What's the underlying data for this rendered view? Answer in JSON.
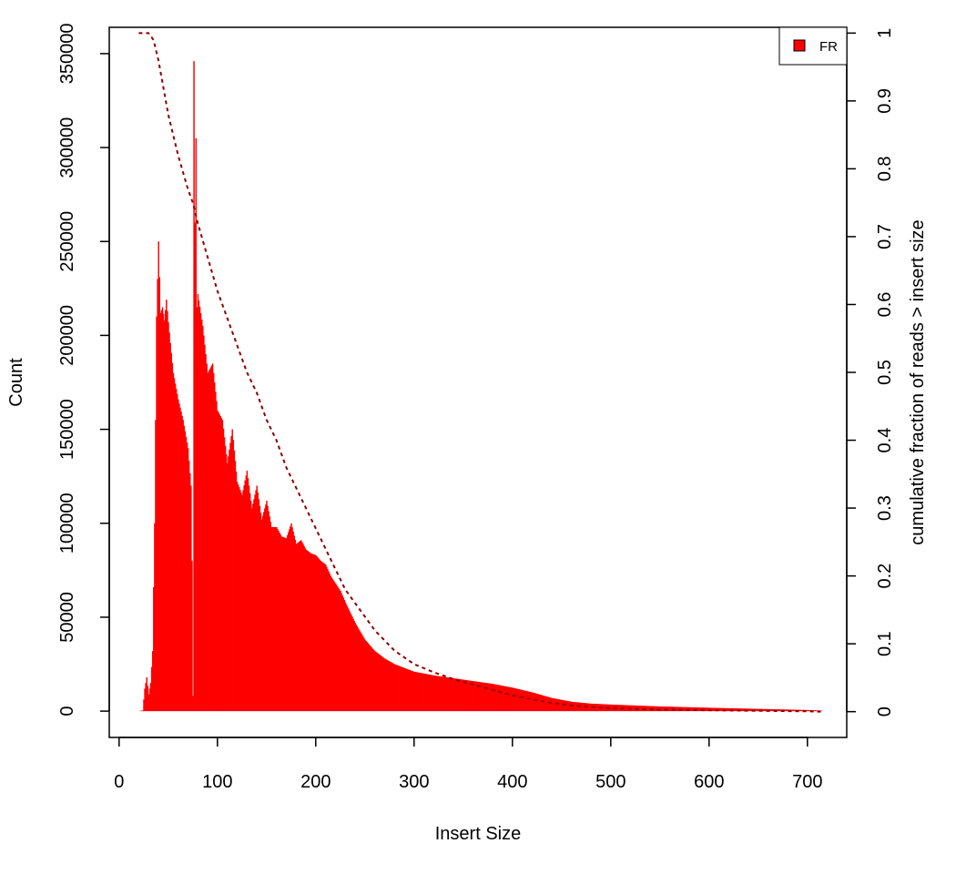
{
  "chart_data": {
    "type": "bar",
    "xlabel": "Insert Size",
    "ylabel": "Count",
    "y2label": "cumulative fraction of reads > insert size",
    "xlim": [
      -10,
      740
    ],
    "ylim": [
      -14000,
      364000
    ],
    "y2lim": [
      -0.038,
      1.0085
    ],
    "x_ticks": [
      "0",
      "100",
      "200",
      "300",
      "400",
      "500",
      "600",
      "700"
    ],
    "y_ticks": [
      "0",
      "50000",
      "100000",
      "150000",
      "200000",
      "250000",
      "300000",
      "350000"
    ],
    "y2_ticks": [
      "0",
      "0.1",
      "0.2",
      "0.3",
      "0.4",
      "0.5",
      "0.6",
      "0.7",
      "0.8",
      "0.9",
      "1"
    ],
    "legend": {
      "position": "top-right",
      "entries": [
        {
          "label": "FR",
          "color": "#ff0000"
        }
      ]
    },
    "bar_color": "#ff0000",
    "curve_color": "#8b0000",
    "histogram_knots": [
      [
        20,
        0
      ],
      [
        24,
        400
      ],
      [
        26,
        12000
      ],
      [
        28,
        18000
      ],
      [
        30,
        9000
      ],
      [
        32,
        15000
      ],
      [
        34,
        32000
      ],
      [
        36,
        100000
      ],
      [
        38,
        210000
      ],
      [
        40,
        250000
      ],
      [
        42,
        212000
      ],
      [
        44,
        215000
      ],
      [
        46,
        208000
      ],
      [
        48,
        219000
      ],
      [
        50,
        207000
      ],
      [
        52,
        196000
      ],
      [
        55,
        180000
      ],
      [
        60,
        166000
      ],
      [
        65,
        155000
      ],
      [
        70,
        140000
      ],
      [
        73,
        120000
      ],
      [
        74,
        80000
      ],
      [
        75,
        8000
      ],
      [
        76,
        346000
      ],
      [
        77,
        260000
      ],
      [
        78,
        305000
      ],
      [
        79,
        215000
      ],
      [
        80,
        222000
      ],
      [
        85,
        205000
      ],
      [
        90,
        180000
      ],
      [
        95,
        185000
      ],
      [
        100,
        160000
      ],
      [
        105,
        155000
      ],
      [
        110,
        132000
      ],
      [
        115,
        150000
      ],
      [
        120,
        122000
      ],
      [
        125,
        115000
      ],
      [
        130,
        128000
      ],
      [
        135,
        108000
      ],
      [
        140,
        120000
      ],
      [
        145,
        102000
      ],
      [
        150,
        112000
      ],
      [
        155,
        98000
      ],
      [
        160,
        98000
      ],
      [
        165,
        93000
      ],
      [
        170,
        92000
      ],
      [
        175,
        100000
      ],
      [
        180,
        89000
      ],
      [
        185,
        91000
      ],
      [
        190,
        86000
      ],
      [
        195,
        84000
      ],
      [
        200,
        83000
      ],
      [
        205,
        80000
      ],
      [
        210,
        78000
      ],
      [
        215,
        72000
      ],
      [
        220,
        68000
      ],
      [
        225,
        64000
      ],
      [
        230,
        58000
      ],
      [
        240,
        47000
      ],
      [
        250,
        38000
      ],
      [
        260,
        32000
      ],
      [
        270,
        28000
      ],
      [
        280,
        25000
      ],
      [
        290,
        23000
      ],
      [
        300,
        21000
      ],
      [
        320,
        19000
      ],
      [
        340,
        17500
      ],
      [
        360,
        16000
      ],
      [
        380,
        14500
      ],
      [
        400,
        12500
      ],
      [
        420,
        10000
      ],
      [
        440,
        7000
      ],
      [
        460,
        5000
      ],
      [
        480,
        4000
      ],
      [
        500,
        3500
      ],
      [
        550,
        2500
      ],
      [
        600,
        1800
      ],
      [
        650,
        1200
      ],
      [
        700,
        600
      ],
      [
        714,
        300
      ]
    ],
    "cumulative_curve": [
      [
        20,
        1.0
      ],
      [
        30,
        1.0
      ],
      [
        35,
        0.99
      ],
      [
        40,
        0.96
      ],
      [
        45,
        0.92
      ],
      [
        50,
        0.88
      ],
      [
        55,
        0.85
      ],
      [
        60,
        0.82
      ],
      [
        70,
        0.77
      ],
      [
        75,
        0.75
      ],
      [
        80,
        0.72
      ],
      [
        90,
        0.67
      ],
      [
        100,
        0.62
      ],
      [
        110,
        0.58
      ],
      [
        120,
        0.54
      ],
      [
        130,
        0.5
      ],
      [
        140,
        0.47
      ],
      [
        150,
        0.43
      ],
      [
        160,
        0.4
      ],
      [
        170,
        0.36
      ],
      [
        180,
        0.33
      ],
      [
        190,
        0.3
      ],
      [
        200,
        0.27
      ],
      [
        210,
        0.24
      ],
      [
        220,
        0.21
      ],
      [
        230,
        0.18
      ],
      [
        240,
        0.16
      ],
      [
        250,
        0.14
      ],
      [
        260,
        0.12
      ],
      [
        270,
        0.105
      ],
      [
        280,
        0.09
      ],
      [
        290,
        0.08
      ],
      [
        300,
        0.07
      ],
      [
        320,
        0.058
      ],
      [
        340,
        0.048
      ],
      [
        360,
        0.04
      ],
      [
        380,
        0.032
      ],
      [
        400,
        0.024
      ],
      [
        420,
        0.018
      ],
      [
        440,
        0.013
      ],
      [
        460,
        0.009
      ],
      [
        480,
        0.007
      ],
      [
        500,
        0.005
      ],
      [
        550,
        0.003
      ],
      [
        600,
        0.002
      ],
      [
        700,
        0.0005
      ],
      [
        714,
        0.0
      ]
    ]
  }
}
